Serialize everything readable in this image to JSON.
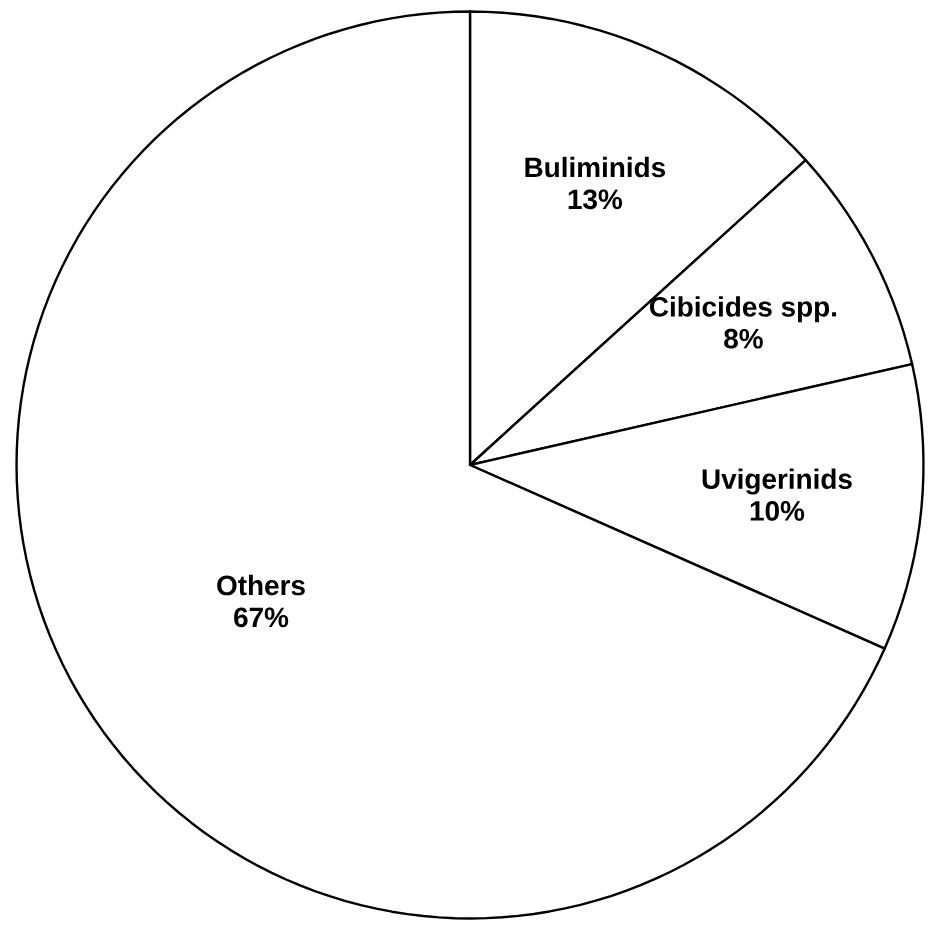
{
  "chart_data": {
    "type": "pie",
    "categories": [
      "Buliminids",
      "Cibicides spp.",
      "Uvigerinids",
      "Others"
    ],
    "values": [
      13,
      8,
      10,
      67
    ],
    "value_labels": [
      "13%",
      "8%",
      "10%",
      "67%"
    ],
    "colors": [
      "#ffffff",
      "#ffffff",
      "#ffffff",
      "#ffffff"
    ]
  }
}
